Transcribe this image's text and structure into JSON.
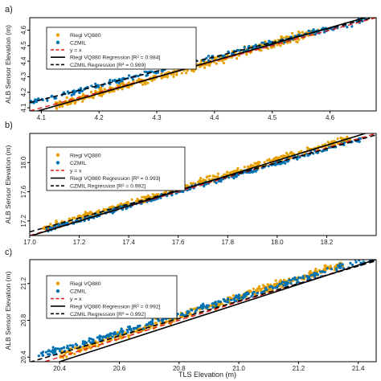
{
  "figure": {
    "shared_ylabel": "ALB Sensor Elevation (m)",
    "shared_xlabel": "TLS Elevation (m)"
  },
  "chart_data": [
    {
      "type": "scatter",
      "panel_label": "a)",
      "xlim": [
        4.08,
        4.68
      ],
      "ylim": [
        4.08,
        4.68
      ],
      "xticks": [
        4.1,
        4.2,
        4.3,
        4.4,
        4.5,
        4.6
      ],
      "yticks": [
        4.1,
        4.2,
        4.3,
        4.4,
        4.5,
        4.6
      ],
      "xtick_labels": [
        "4.1",
        "4.2",
        "4.3",
        "4.4",
        "4.5",
        "4.6"
      ],
      "ytick_labels": [
        "4.1",
        "4.2",
        "4.3",
        "4.4",
        "4.5",
        "4.6"
      ],
      "legend": [
        {
          "label": "Riegl VQ880",
          "kind": "point",
          "color": "#E69F00"
        },
        {
          "label": "CZMIL",
          "kind": "point",
          "color": "#0072B2"
        },
        {
          "label": "y = x",
          "kind": "line",
          "color": "#E41A1C",
          "dash": "dashed"
        },
        {
          "label": "Riegl VQ880 Regression [R² = 0.984]",
          "kind": "line",
          "color": "#000000",
          "dash": "solid"
        },
        {
          "label": "CZMIL Regression [R² = 0.989]",
          "kind": "line",
          "color": "#000000",
          "dash": "dashed"
        }
      ],
      "series": [
        {
          "name": "Riegl VQ880",
          "color": "#E69F00",
          "x_range": [
            4.12,
            4.58
          ],
          "fit": {
            "slope": 1.06,
            "intercept": -0.26
          },
          "spread": 0.018,
          "count": 420
        },
        {
          "name": "CZMIL",
          "color": "#0072B2",
          "x_range": [
            4.08,
            4.66
          ],
          "fit": {
            "slope": 0.92,
            "intercept": 0.38
          },
          "spread": 0.012,
          "count": 260
        }
      ],
      "lines": [
        {
          "name": "y = x",
          "color": "#E41A1C",
          "dash": "dashed",
          "slope": 1.0,
          "intercept": 0.0
        },
        {
          "name": "Riegl VQ880 Regression",
          "color": "#000000",
          "dash": "solid",
          "slope": 1.06,
          "intercept": -0.26
        },
        {
          "name": "CZMIL Regression",
          "color": "#000000",
          "dash": "dashed",
          "slope": 0.92,
          "intercept": 0.38
        }
      ]
    },
    {
      "type": "scatter",
      "panel_label": "b)",
      "xlim": [
        17.0,
        18.4
      ],
      "ylim": [
        17.0,
        18.4
      ],
      "xticks": [
        17.0,
        17.2,
        17.4,
        17.6,
        17.8,
        18.0,
        18.2
      ],
      "yticks": [
        17.2,
        17.6,
        18.0
      ],
      "xtick_labels": [
        "17.0",
        "17.2",
        "17.4",
        "17.6",
        "17.8",
        "18.0",
        "18.2"
      ],
      "ytick_labels": [
        "17.2",
        "17.6",
        "18.0"
      ],
      "legend": [
        {
          "label": "Riegl VQ880",
          "kind": "point",
          "color": "#E69F00"
        },
        {
          "label": "CZMIL",
          "kind": "point",
          "color": "#0072B2"
        },
        {
          "label": "y = x",
          "kind": "line",
          "color": "#E41A1C",
          "dash": "dashed"
        },
        {
          "label": "Riegl VQ880 Regression [R² = 0.993]",
          "kind": "line",
          "color": "#000000",
          "dash": "solid"
        },
        {
          "label": "CZMIL Regression [R² = 0.992]",
          "kind": "line",
          "color": "#000000",
          "dash": "dashed"
        }
      ],
      "series": [
        {
          "name": "Riegl VQ880",
          "color": "#E69F00",
          "x_range": [
            17.05,
            18.3
          ],
          "fit": {
            "slope": 1.0,
            "intercept": 0.04
          },
          "spread": 0.03,
          "count": 420
        },
        {
          "name": "CZMIL",
          "color": "#0072B2",
          "x_range": [
            17.05,
            18.35
          ],
          "fit": {
            "slope": 0.98,
            "intercept": 0.35
          },
          "spread": 0.02,
          "count": 300
        }
      ],
      "lines": [
        {
          "name": "y = x",
          "color": "#E41A1C",
          "dash": "dashed",
          "slope": 1.0,
          "intercept": 0.0
        },
        {
          "name": "Riegl VQ880 Regression",
          "color": "#000000",
          "dash": "solid",
          "slope": 1.04,
          "intercept": -0.69
        },
        {
          "name": "CZMIL Regression",
          "color": "#000000",
          "dash": "dashed",
          "slope": 0.95,
          "intercept": 0.9
        }
      ]
    },
    {
      "type": "scatter",
      "panel_label": "c)",
      "xlim": [
        20.3,
        21.46
      ],
      "ylim": [
        20.35,
        21.46
      ],
      "xticks": [
        20.4,
        20.6,
        20.8,
        21.0,
        21.2,
        21.4
      ],
      "yticks": [
        20.4,
        20.8,
        21.2
      ],
      "xtick_labels": [
        "20.4",
        "20.6",
        "20.8",
        "21.0",
        "21.2",
        "21.4"
      ],
      "ytick_labels": [
        "20.4",
        "20.8",
        "21.2"
      ],
      "legend": [
        {
          "label": "Riegl VQ880",
          "kind": "point",
          "color": "#E69F00"
        },
        {
          "label": "CZMIL",
          "kind": "point",
          "color": "#0072B2"
        },
        {
          "label": "y = x",
          "kind": "line",
          "color": "#E41A1C",
          "dash": "dashed"
        },
        {
          "label": "Riegl VQ880 Regression [R² = 0.992]",
          "kind": "line",
          "color": "#000000",
          "dash": "solid"
        },
        {
          "label": "CZMIL Regression [R² = 0.992]",
          "kind": "line",
          "color": "#000000",
          "dash": "dashed"
        }
      ],
      "series": [
        {
          "name": "Riegl VQ880",
          "color": "#E69F00",
          "x_range": [
            20.4,
            21.35
          ],
          "fit": {
            "slope": 1.05,
            "intercept": -1.0
          },
          "spread": 0.03,
          "count": 420
        },
        {
          "name": "CZMIL",
          "color": "#0072B2",
          "x_range": [
            20.33,
            21.45
          ],
          "fit": {
            "slope": 0.95,
            "intercept": 1.1
          },
          "spread": 0.025,
          "count": 320
        }
      ],
      "lines": [
        {
          "name": "y = x",
          "color": "#E41A1C",
          "dash": "dashed",
          "slope": 1.0,
          "intercept": 0.0
        },
        {
          "name": "Riegl VQ880 Regression",
          "color": "#000000",
          "dash": "solid",
          "slope": 1.05,
          "intercept": -1.07
        },
        {
          "name": "CZMIL Regression",
          "color": "#000000",
          "dash": "dashed",
          "slope": 0.95,
          "intercept": 1.06
        }
      ]
    }
  ]
}
